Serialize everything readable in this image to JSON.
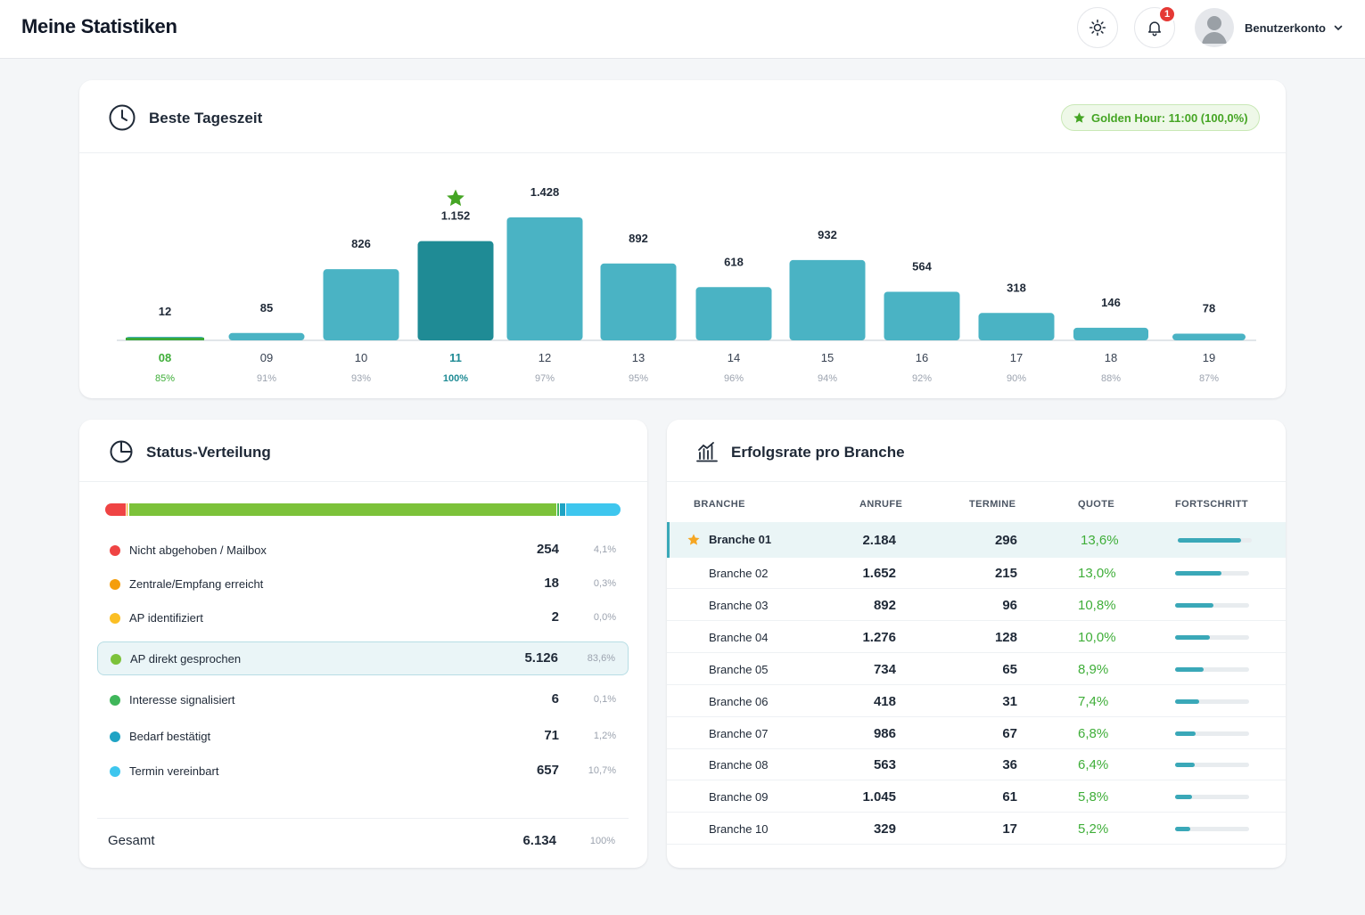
{
  "header": {
    "title": "Meine Statistiken",
    "notification_count": "1",
    "account_label": "Benutzerkonto"
  },
  "icons": {
    "theme": "sun-icon",
    "notifications": "bell-icon",
    "account": "user-avatar-icon",
    "dropdown": "chevron-down-icon",
    "best_time": "clock-icon",
    "status": "pie-chart-icon",
    "branch": "bar-chart-icon",
    "highlight": "star-icon"
  },
  "colors": {
    "bar": "#4ab3c4",
    "bar_best": "#1f8b95",
    "accent_green": "#3fae39",
    "best_label": "#1f8b95"
  },
  "best_time": {
    "title": "Beste Tageszeit",
    "golden_hour": "Golden Hour: 11:00 (100,0%)"
  },
  "chart_data": {
    "type": "bar",
    "categories": [
      "08",
      "09",
      "10",
      "11",
      "12",
      "13",
      "14",
      "15",
      "16",
      "17",
      "18",
      "19"
    ],
    "values": [
      12,
      85,
      826,
      1152,
      1428,
      892,
      618,
      932,
      564,
      318,
      146,
      78
    ],
    "value_labels": [
      "12",
      "85",
      "826",
      "1.152",
      "1.428",
      "892",
      "618",
      "932",
      "564",
      "318",
      "146",
      "78"
    ],
    "percent_labels": [
      "85%",
      "91%",
      "93%",
      "100%",
      "97%",
      "95%",
      "96%",
      "94%",
      "92%",
      "90%",
      "88%",
      "87%"
    ],
    "highlight_index": 3,
    "title": "",
    "xlabel": "",
    "ylabel": ""
  },
  "status": {
    "title": "Status-Verteilung",
    "items": [
      {
        "label": "Nicht abgehoben / Mailbox",
        "count": "254",
        "pct": "4,1%",
        "color": "#ef4444",
        "share": 4.1
      },
      {
        "label": "Zentrale/Empfang erreicht",
        "count": "18",
        "pct": "0,3%",
        "color": "#f59e0b",
        "share": 0.3
      },
      {
        "label": "AP identifiziert",
        "count": "2",
        "pct": "0,0%",
        "color": "#fbbf24",
        "share": 0.0
      },
      {
        "label": "AP direkt gesprochen",
        "count": "5.126",
        "pct": "83,6%",
        "color": "#7cc23a",
        "share": 83.6,
        "active": true
      },
      {
        "label": "Interesse signalisiert",
        "count": "6",
        "pct": "0,1%",
        "color": "#3fb65a",
        "share": 0.1
      },
      {
        "label": "Bedarf bestätigt",
        "count": "71",
        "pct": "1,2%",
        "color": "#1fa3c4",
        "share": 1.2
      },
      {
        "label": "Termin vereinbart",
        "count": "657",
        "pct": "10,7%",
        "color": "#3ec6ee",
        "share": 10.7
      }
    ],
    "total_label": "Gesamt",
    "total_count": "6.134",
    "total_pct": "100%"
  },
  "branch": {
    "title": "Erfolgsrate pro Branche",
    "columns": [
      "BRANCHE",
      "ANRUFE",
      "TERMINE",
      "QUOTE",
      "FORTSCHRITT"
    ],
    "rows": [
      {
        "name": "Branche 01",
        "calls": "2.184",
        "terms": "296",
        "quote": "13,6%",
        "progress": 0.85,
        "star": true
      },
      {
        "name": "Branche 02",
        "calls": "1.652",
        "terms": "215",
        "quote": "13,0%",
        "progress": 0.63
      },
      {
        "name": "Branche 03",
        "calls": "892",
        "terms": "96",
        "quote": "10,8%",
        "progress": 0.52
      },
      {
        "name": "Branche 04",
        "calls": "1.276",
        "terms": "128",
        "quote": "10,0%",
        "progress": 0.47
      },
      {
        "name": "Branche 05",
        "calls": "734",
        "terms": "65",
        "quote": "8,9%",
        "progress": 0.38
      },
      {
        "name": "Branche 06",
        "calls": "418",
        "terms": "31",
        "quote": "7,4%",
        "progress": 0.32
      },
      {
        "name": "Branche 07",
        "calls": "986",
        "terms": "67",
        "quote": "6,8%",
        "progress": 0.28
      },
      {
        "name": "Branche 08",
        "calls": "563",
        "terms": "36",
        "quote": "6,4%",
        "progress": 0.26
      },
      {
        "name": "Branche 09",
        "calls": "1.045",
        "terms": "61",
        "quote": "5,8%",
        "progress": 0.23
      },
      {
        "name": "Branche 10",
        "calls": "329",
        "terms": "17",
        "quote": "5,2%",
        "progress": 0.21
      }
    ]
  }
}
